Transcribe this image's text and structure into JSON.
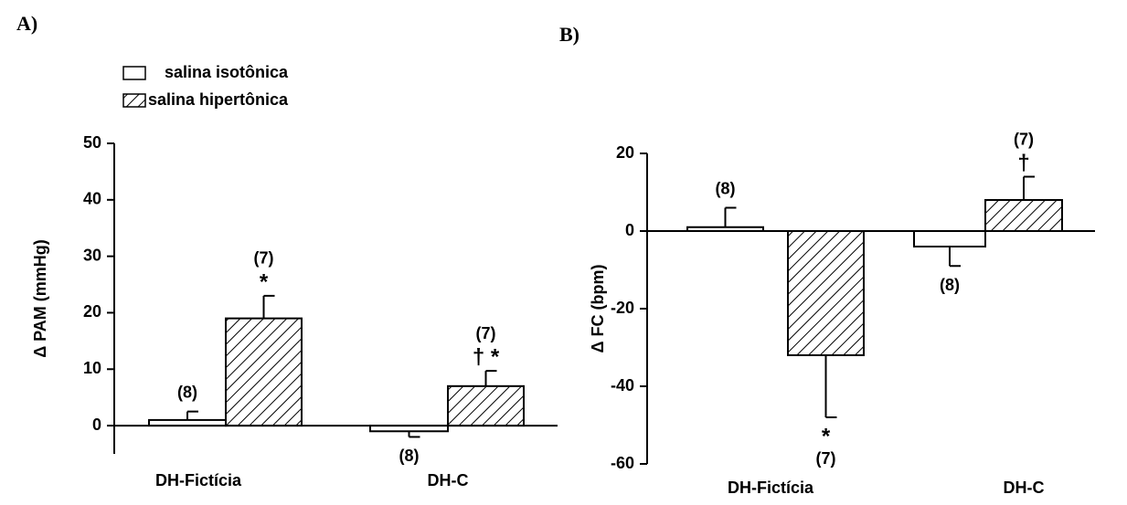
{
  "chart_data": [
    {
      "type": "bar",
      "panel_label": "A)",
      "ylabel": "Δ PAM (mmHg)",
      "categories": [
        "DH-Fictícia",
        "DH-C"
      ],
      "series": [
        {
          "name": "salina isotônica",
          "color": "#ffffff",
          "values": [
            1,
            -1
          ],
          "errors": [
            1.5,
            1
          ],
          "counts": [
            "(8)",
            "(8)"
          ],
          "marks": [
            null,
            null
          ]
        },
        {
          "name": "salina hipertônica",
          "color": "hatch",
          "values": [
            19,
            7
          ],
          "errors": [
            4,
            2.7
          ],
          "counts": [
            "(7)",
            "(7)"
          ],
          "marks": [
            "*",
            "† *"
          ]
        }
      ],
      "ylim": [
        -5,
        50
      ],
      "yticks": [
        0,
        10,
        20,
        30,
        40,
        50
      ]
    },
    {
      "type": "bar",
      "panel_label": "B)",
      "ylabel": "Δ FC (bpm)",
      "categories": [
        "DH-Fictícia",
        "DH-C"
      ],
      "series": [
        {
          "color": "#ffffff",
          "values": [
            1,
            -4
          ],
          "errors": [
            5,
            5
          ],
          "counts": [
            "(8)",
            "(8)"
          ],
          "marks": [
            null,
            null
          ]
        },
        {
          "color": "hatch",
          "values": [
            -32,
            8
          ],
          "errors": [
            16,
            6
          ],
          "counts": [
            "(7)",
            "(7)"
          ],
          "marks": [
            "*",
            "†"
          ]
        }
      ],
      "ylim": [
        -60,
        20
      ],
      "yticks": [
        -60,
        -40,
        -20,
        0,
        20
      ]
    }
  ]
}
